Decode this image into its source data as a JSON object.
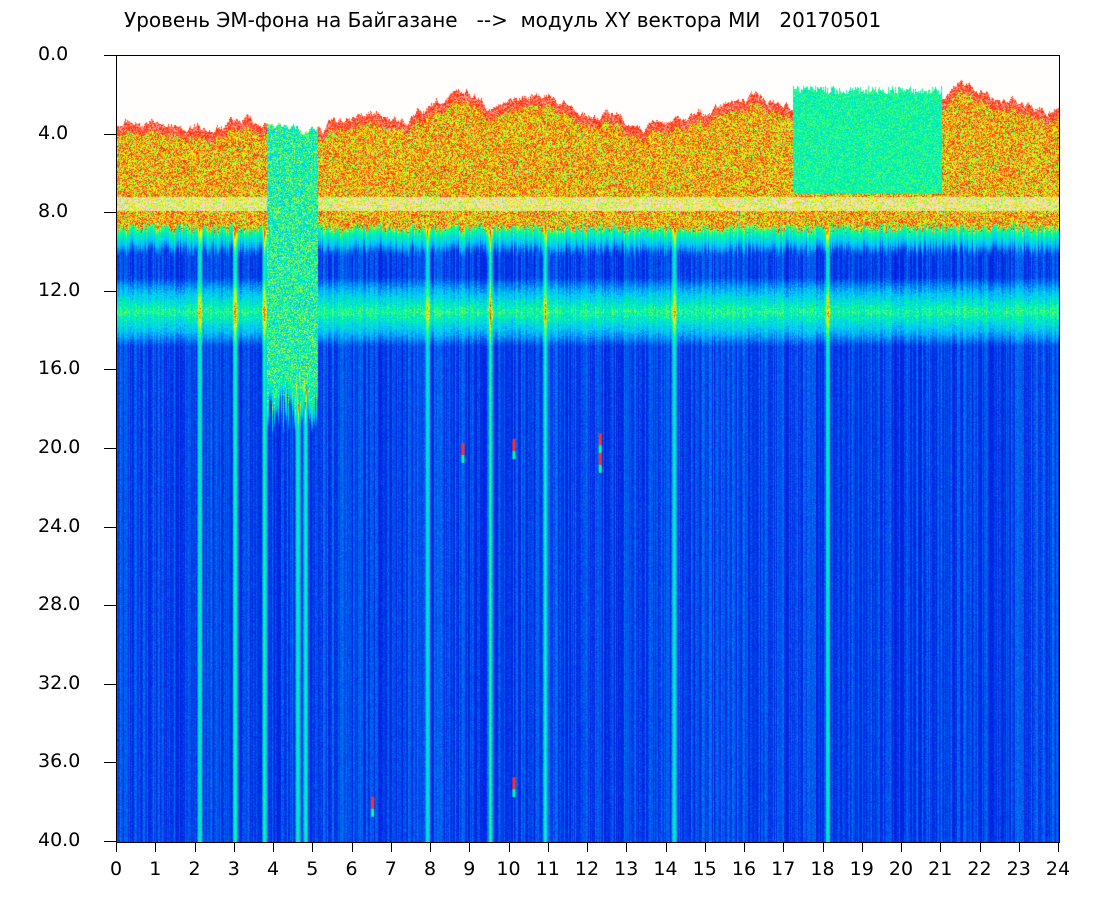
{
  "chart_data": {
    "type": "heatmap",
    "title": "Уровень ЭМ-фона на Байгазане   -->  модуль XY вектора МИ   20170501",
    "xlabel": "",
    "ylabel": "",
    "x_ticks": [
      "0",
      "1",
      "2",
      "3",
      "4",
      "5",
      "6",
      "7",
      "8",
      "9",
      "10",
      "11",
      "12",
      "13",
      "14",
      "15",
      "16",
      "17",
      "18",
      "19",
      "20",
      "21",
      "22",
      "23",
      "24"
    ],
    "y_ticks": [
      "0.0",
      "4.0",
      "8.0",
      "12.0",
      "16.0",
      "20.0",
      "24.0",
      "28.0",
      "32.0",
      "36.0",
      "40.0"
    ],
    "xlim": [
      0,
      24
    ],
    "ylim": [
      0,
      40
    ],
    "y_inverted": true,
    "grid": false,
    "colormap": [
      "#0000b4",
      "#0028e6",
      "#00c8ff",
      "#00ff96",
      "#ffff00",
      "#ff2000",
      "#ffffff"
    ],
    "background_color": "#0010c8",
    "features": [
      {
        "type": "high_noise_band_top",
        "x_start": 0.0,
        "x_end": 24.0,
        "y_top_typical": 3.5,
        "y_bottom_typical": 8.5
      },
      {
        "type": "hot_band",
        "y_center": 7.5
      },
      {
        "type": "mid_band",
        "y_center": 13.0,
        "y_width": 2.0
      },
      {
        "type": "strong_vertical_streaks_x",
        "values": [
          2.1,
          3.0,
          3.75,
          4.6,
          4.8,
          7.9,
          9.5,
          10.9,
          14.2,
          18.1
        ]
      },
      {
        "type": "quiet_high_level_region",
        "x_start": 17.2,
        "x_end": 21.0,
        "y_top": 1.5,
        "y_bottom": 7.0
      },
      {
        "type": "dip_region",
        "x_start": 3.8,
        "x_end": 5.1,
        "y_depth": 16.0
      },
      {
        "type": "isolated_hotspots",
        "points": [
          [
            12.3,
            19.5
          ],
          [
            12.3,
            20.5
          ],
          [
            8.8,
            20.0
          ],
          [
            10.1,
            19.8
          ],
          [
            6.5,
            38.0
          ],
          [
            10.1,
            37.0
          ]
        ]
      }
    ]
  }
}
